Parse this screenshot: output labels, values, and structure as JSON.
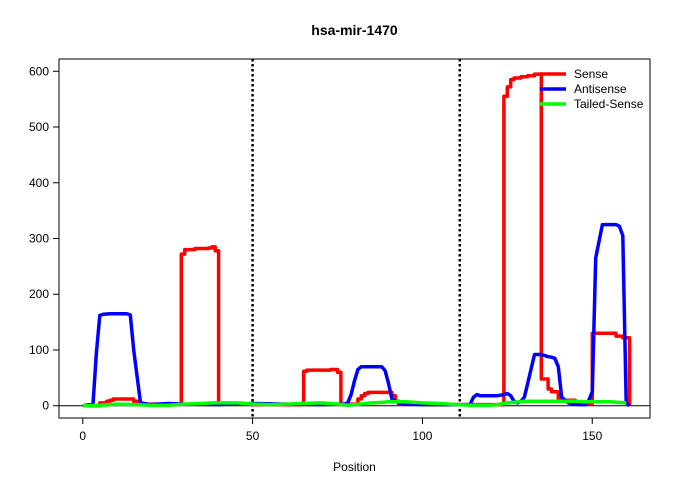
{
  "chart_data": {
    "type": "line",
    "title": "hsa-mir-1470",
    "xlabel": "Position",
    "ylabel": "",
    "xlim": [
      -7,
      167
    ],
    "ylim": [
      -22,
      622
    ],
    "xticks": [
      0,
      50,
      100,
      150
    ],
    "yticks": [
      0,
      100,
      200,
      300,
      400,
      500,
      600
    ],
    "vlines": [
      50,
      111
    ],
    "legend_position": "top-right",
    "series": [
      {
        "name": "Sense",
        "color": "#ff0000",
        "step": true,
        "x": [
          0,
          5,
          7,
          8,
          9,
          10,
          13,
          15,
          17,
          19,
          20,
          23,
          25,
          27,
          28,
          29,
          30,
          33,
          35,
          37,
          38,
          39,
          40,
          50,
          55,
          60,
          64,
          65,
          66,
          68,
          70,
          72,
          73,
          75,
          76,
          77,
          80,
          81,
          82,
          83,
          84,
          90,
          91,
          92,
          93,
          95,
          100,
          110,
          115,
          120,
          123,
          124,
          125,
          126,
          127,
          129,
          131,
          133,
          134,
          135,
          137,
          138,
          140,
          145,
          149,
          150,
          151,
          152,
          154,
          156,
          157,
          158,
          159,
          160,
          161
        ],
        "y": [
          0,
          5,
          8,
          10,
          12,
          12,
          12,
          8,
          3,
          2,
          3,
          3,
          3,
          3,
          3,
          272,
          280,
          282,
          282,
          283,
          285,
          278,
          3,
          2,
          2,
          2,
          2,
          62,
          64,
          64,
          64,
          64,
          65,
          60,
          3,
          3,
          3,
          12,
          18,
          22,
          24,
          24,
          18,
          8,
          3,
          3,
          2,
          2,
          2,
          2,
          2,
          555,
          572,
          585,
          588,
          590,
          592,
          595,
          595,
          48,
          30,
          25,
          10,
          3,
          3,
          130,
          130,
          130,
          130,
          130,
          125,
          125,
          122,
          122,
          0
        ]
      },
      {
        "name": "Antisense",
        "color": "#0000ff",
        "step": false,
        "x": [
          0,
          3,
          4,
          5,
          6,
          8,
          10,
          13,
          14,
          15,
          17,
          20,
          25,
          30,
          40,
          50,
          60,
          70,
          75,
          77,
          78,
          79,
          80,
          81,
          82,
          85,
          88,
          89,
          90,
          91,
          93,
          95,
          100,
          110,
          114,
          115,
          116,
          117,
          120,
          122,
          124,
          125,
          126,
          127,
          128,
          129,
          130,
          131,
          133,
          135,
          136,
          137,
          138,
          139,
          140,
          141,
          143,
          145,
          146,
          147,
          148,
          149,
          150,
          151,
          153,
          155,
          157,
          158,
          159,
          160,
          161
        ],
        "y": [
          0,
          3,
          95,
          162,
          164,
          165,
          165,
          165,
          163,
          100,
          5,
          2,
          4,
          3,
          2,
          4,
          3,
          2,
          3,
          3,
          5,
          20,
          45,
          65,
          70,
          70,
          70,
          63,
          40,
          12,
          5,
          3,
          2,
          2,
          2,
          15,
          20,
          18,
          18,
          18,
          20,
          22,
          18,
          8,
          5,
          8,
          15,
          40,
          92,
          92,
          90,
          88,
          87,
          85,
          70,
          15,
          5,
          3,
          2,
          2,
          2,
          10,
          25,
          265,
          325,
          325,
          325,
          322,
          305,
          5,
          0
        ]
      },
      {
        "name": "Tailed-Sense",
        "color": "#00ff00",
        "step": false,
        "x": [
          0,
          5,
          10,
          15,
          20,
          25,
          30,
          35,
          38,
          40,
          45,
          48,
          50,
          55,
          60,
          65,
          70,
          75,
          78,
          80,
          85,
          88,
          90,
          95,
          100,
          105,
          110,
          115,
          120,
          122,
          125,
          130,
          135,
          140,
          142,
          145,
          148,
          150,
          155,
          160
        ],
        "y": [
          0,
          1,
          3,
          2,
          1,
          1,
          3,
          4,
          5,
          5,
          5,
          4,
          3,
          2,
          3,
          4,
          5,
          3,
          1,
          2,
          5,
          6,
          7,
          7,
          5,
          4,
          2,
          1,
          1,
          2,
          5,
          8,
          8,
          8,
          8,
          8,
          7,
          7,
          7,
          5
        ]
      }
    ]
  }
}
